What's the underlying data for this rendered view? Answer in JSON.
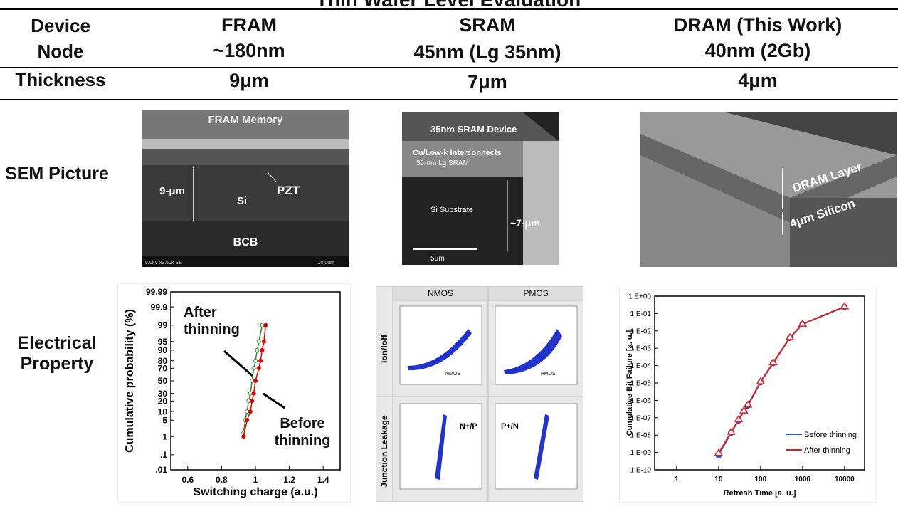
{
  "header": {
    "title": "Thin Wafer Level Evaluation"
  },
  "row_labels": {
    "device": "Device",
    "node": "Node",
    "thickness": "Thickness",
    "sem": "SEM Picture",
    "electrical": "Electrical Property"
  },
  "columns": [
    {
      "device": "FRAM",
      "node": "~180nm",
      "thickness": "9μm"
    },
    {
      "device": "SRAM",
      "node": "45nm (Lg 35nm)",
      "thickness": "7μm"
    },
    {
      "device": "DRAM (This Work)",
      "node": "40nm (2Gb)",
      "thickness": "4μm"
    }
  ],
  "sem": {
    "fram": {
      "title": "FRAM Memory",
      "pzt": "PZT",
      "thickness": "9-μm",
      "si": "Si",
      "bcb": "BCB",
      "info": "5.0kV x3.60k SE",
      "scale": "10.0um"
    },
    "sram": {
      "title": "35nm SRAM Device",
      "interconnect": "Cu/Low-k Interconnects",
      "lg": "35-nm Lg SRAM",
      "substrate": "Si Substrate",
      "thickness": "~7-μm",
      "scale": "5μm"
    },
    "dram": {
      "layer": "DRAM Layer",
      "silicon": "4μm Silicon"
    }
  },
  "sram_panels": {
    "columns": [
      "NMOS",
      "PMOS"
    ],
    "rows": [
      "Ion/Ioff",
      "Junction Leakage"
    ],
    "tags": [
      "NMOS",
      "PMOS",
      "N+/P",
      "P+/N"
    ]
  },
  "chart_data": [
    {
      "type": "scatter",
      "x_label": "Switching charge (a.u.)",
      "y_label": "Cumulative probability (%)",
      "y_scale": "probability",
      "xlim": [
        0.5,
        1.5
      ],
      "xticks": [
        0.6,
        0.8,
        1,
        1.2,
        1.4
      ],
      "ylim": [
        0.01,
        99.99
      ],
      "yticks": [
        {
          "value": 0.01,
          "label": ".01"
        },
        {
          "value": 0.1,
          "label": ".1"
        },
        1,
        5,
        10,
        20,
        30,
        50,
        70,
        80,
        90,
        95,
        99,
        99.9,
        99.99
      ],
      "annotations": [
        "After thinning",
        "Before thinning"
      ],
      "series": [
        {
          "color": "#2e8b2e",
          "marker": "hollow",
          "x": [
            0.93,
            0.94,
            0.95,
            0.96,
            0.97,
            0.98,
            0.99,
            1.0,
            1.01,
            1.02,
            1.04
          ],
          "values": [
            1.5,
            5,
            10,
            20,
            30,
            50,
            70,
            80,
            90,
            95,
            99
          ]
        },
        {
          "color": "#e00000",
          "marker": "filled",
          "x": [
            0.93,
            0.95,
            0.97,
            0.98,
            0.99,
            1.0,
            1.02,
            1.03,
            1.04,
            1.05,
            1.06
          ],
          "values": [
            1,
            5,
            10,
            20,
            30,
            50,
            70,
            80,
            90,
            95,
            99
          ]
        }
      ]
    },
    {
      "type": "line",
      "x_label": "Refresh Time [a. u.]",
      "y_label": "Cumulative Bit Failure [a. u.]",
      "x_scale": "log",
      "y_scale": "log",
      "legend": "lower right",
      "xlim": [
        0.3,
        30000
      ],
      "xticks": [
        1,
        10,
        100,
        1000,
        10000
      ],
      "ylim": [
        1e-10,
        1
      ],
      "yticks": [
        {
          "value": 1,
          "label": "1.E+00"
        },
        {
          "value": 0.1,
          "label": "1.E-01"
        },
        {
          "value": 0.01,
          "label": "1.E-02"
        },
        {
          "value": 0.001,
          "label": "1.E-03"
        },
        {
          "value": 0.0001,
          "label": "1.E-04"
        },
        {
          "value": 1e-05,
          "label": "1.E-05"
        },
        {
          "value": 1e-06,
          "label": "1.E-06"
        },
        {
          "value": 1e-07,
          "label": "1.E-07"
        },
        {
          "value": 1e-08,
          "label": "1.E-08"
        },
        {
          "value": 1e-09,
          "label": "1.E-09"
        },
        {
          "value": 1e-10,
          "label": "1.E-10"
        }
      ],
      "x": [
        10,
        20,
        30,
        40,
        50,
        100,
        200,
        500,
        1000,
        10000
      ],
      "series": [
        {
          "name": "Before thinning",
          "color": "#1f5fd6",
          "marker": "circle",
          "values": [
            7e-10,
            1.4e-08,
            7e-08,
            2.3e-07,
            5e-07,
            1.1e-05,
            0.00014,
            0.004,
            0.024,
            0.24
          ]
        },
        {
          "name": "After thinning",
          "color": "#e02020",
          "marker": "triangle",
          "values": [
            9e-10,
            1.5e-08,
            8e-08,
            2.5e-07,
            5.5e-07,
            1.2e-05,
            0.00015,
            0.0042,
            0.025,
            0.25
          ]
        }
      ]
    }
  ]
}
